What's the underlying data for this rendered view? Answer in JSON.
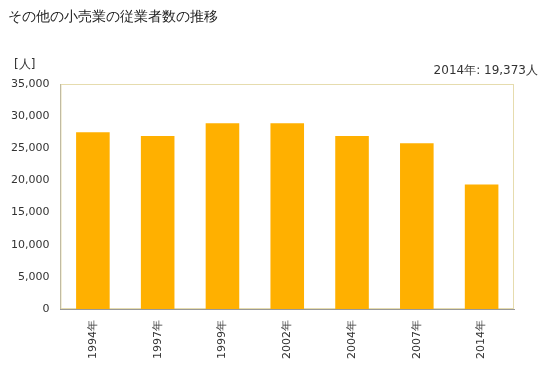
{
  "chart_data": {
    "type": "bar",
    "title": "その他の小売業の従業者数の推移",
    "y_label": "[人]",
    "annotation": "2014年: 19,373人",
    "categories": [
      "1994年",
      "1997年",
      "1999年",
      "2002年",
      "2004年",
      "2007年",
      "2014年"
    ],
    "values": [
      27500,
      26900,
      28900,
      28900,
      26900,
      25800,
      19373
    ],
    "color": "#ffb000",
    "ylim": [
      0,
      35000
    ],
    "yticks": [
      0,
      {
        "value": 5000,
        "label": "5,000"
      },
      {
        "value": 10000,
        "label": "10,000"
      },
      {
        "value": 15000,
        "label": "15,000"
      },
      {
        "value": 20000,
        "label": "20,000"
      },
      {
        "value": 25000,
        "label": "25,000"
      },
      {
        "value": 30000,
        "label": "30,000"
      },
      {
        "value": 35000,
        "label": "35,000"
      }
    ],
    "grid": false
  }
}
